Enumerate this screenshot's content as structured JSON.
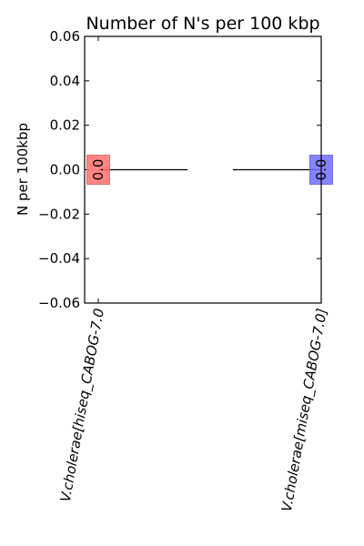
{
  "chart_data": {
    "type": "bar",
    "title": "Number of N's per 100 kbp",
    "ylabel": "N per 100kbp",
    "xlabel": "",
    "ylim": [
      -0.06,
      0.06
    ],
    "yticks": [
      0.06,
      0.04,
      0.02,
      0.0,
      -0.02,
      -0.04,
      -0.06
    ],
    "ytick_labels": [
      "0.06",
      "0.04",
      "0.02",
      "0.00",
      "−0.02",
      "−0.04",
      "−0.06"
    ],
    "grid": false,
    "legend": "none",
    "categories": [
      "V.cholerae[hiseq_CABOG-7.0",
      "V.cholerae[miseq_CABOG-7.0]"
    ],
    "values": [
      0.0,
      0.0
    ],
    "data_labels": [
      "0.0",
      "0.0"
    ],
    "colors": [
      "#ff6f6f",
      "#6f6fff"
    ],
    "edge_colors": [
      "#e07070",
      "#7070e0"
    ]
  }
}
